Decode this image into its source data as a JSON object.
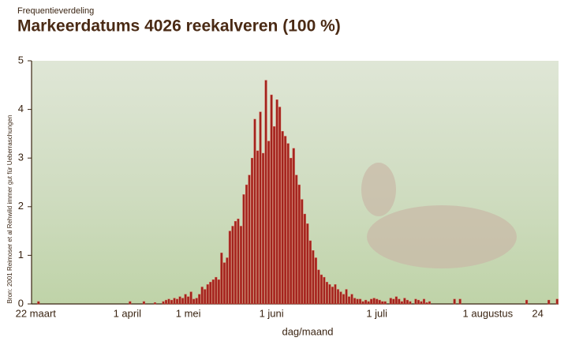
{
  "chart_data": {
    "type": "bar",
    "subtitle": "Frequentieverdeling",
    "title": "Markeerdatums 4026 reekalveren (100 %)",
    "x_label": "dag/maand",
    "source": "Bron: 2001 Reimoser et al Rehwild immer gut für Ueberraschungen",
    "color": "#a3231d",
    "ylim": [
      0,
      5
    ],
    "yticks": [
      0,
      1,
      2,
      3,
      4,
      5
    ],
    "grid": false,
    "categories": [
      null,
      "22 maart",
      null,
      null,
      null,
      null,
      null,
      null,
      null,
      null,
      null,
      null,
      null,
      null,
      null,
      null,
      null,
      null,
      null,
      null,
      null,
      null,
      null,
      null,
      null,
      null,
      null,
      null,
      null,
      null,
      null,
      null,
      null,
      null,
      "1 april",
      null,
      null,
      null,
      null,
      null,
      null,
      null,
      null,
      null,
      null,
      null,
      null,
      null,
      null,
      null,
      null,
      null,
      null,
      null,
      null,
      null,
      "1 mei",
      null,
      null,
      null,
      null,
      null,
      null,
      null,
      null,
      null,
      null,
      null,
      null,
      null,
      null,
      null,
      null,
      null,
      null,
      null,
      null,
      null,
      null,
      null,
      null,
      null,
      null,
      null,
      null,
      null,
      "1 juni",
      null,
      null,
      null,
      null,
      null,
      null,
      null,
      null,
      null,
      null,
      null,
      null,
      null,
      null,
      null,
      null,
      null,
      null,
      null,
      null,
      null,
      null,
      null,
      null,
      null,
      null,
      null,
      null,
      null,
      null,
      null,
      null,
      null,
      null,
      null,
      null,
      null,
      "1 juli",
      null,
      null,
      null,
      null,
      null,
      null,
      null,
      null,
      null,
      null,
      null,
      null,
      null,
      null,
      null,
      null,
      null,
      null,
      null,
      null,
      null,
      null,
      null,
      null,
      null,
      null,
      null,
      null,
      null,
      null,
      null,
      null,
      null,
      null,
      null,
      null,
      null,
      null,
      null,
      "1 augustus",
      null,
      null,
      null,
      null,
      null,
      null,
      null,
      null,
      null,
      null,
      null,
      null,
      null,
      null,
      null,
      null,
      null,
      "24",
      null,
      null,
      null,
      null,
      null,
      null,
      null
    ],
    "values": [
      0,
      0,
      0.05,
      0,
      0,
      0,
      0,
      0,
      0,
      0,
      0,
      0,
      0,
      0,
      0,
      0,
      0,
      0,
      0,
      0,
      0,
      0,
      0,
      0,
      0,
      0,
      0,
      0,
      0,
      0,
      0,
      0,
      0,
      0,
      0,
      0.05,
      0,
      0,
      0,
      0,
      0.05,
      0,
      0,
      0,
      0.03,
      0,
      0,
      0.05,
      0.08,
      0.1,
      0.08,
      0.12,
      0.1,
      0.15,
      0.12,
      0.2,
      0.15,
      0.25,
      0.1,
      0.12,
      0.2,
      0.35,
      0.3,
      0.4,
      0.45,
      0.5,
      0.55,
      0.5,
      1.05,
      0.85,
      0.95,
      1.5,
      1.6,
      1.7,
      1.75,
      1.6,
      2.25,
      2.45,
      2.65,
      3,
      3.8,
      3.15,
      3.95,
      3.1,
      4.6,
      3.35,
      4.3,
      3.65,
      4.2,
      4.05,
      3.55,
      3.45,
      3.3,
      3,
      3.2,
      2.65,
      2.45,
      2.15,
      1.85,
      1.65,
      1.3,
      1.1,
      0.95,
      0.7,
      0.6,
      0.55,
      0.45,
      0.4,
      0.35,
      0.4,
      0.3,
      0.25,
      0.2,
      0.3,
      0.15,
      0.2,
      0.12,
      0.1,
      0.1,
      0.05,
      0.08,
      0.05,
      0.1,
      0.12,
      0.1,
      0.08,
      0.05,
      0.05,
      0,
      0.12,
      0.1,
      0.15,
      0.1,
      0.05,
      0.12,
      0.08,
      0.05,
      0,
      0.1,
      0.08,
      0.05,
      0.1,
      0.03,
      0.05,
      0,
      0,
      0,
      0,
      0,
      0,
      0,
      0,
      0.1,
      0,
      0.1,
      0,
      0,
      0,
      0,
      0,
      0,
      0,
      0,
      0,
      0,
      0,
      0,
      0,
      0,
      0,
      0,
      0,
      0,
      0,
      0,
      0,
      0,
      0,
      0.08,
      0,
      0,
      0,
      0,
      0,
      0,
      0,
      0.08,
      0,
      0,
      0.1
    ]
  }
}
